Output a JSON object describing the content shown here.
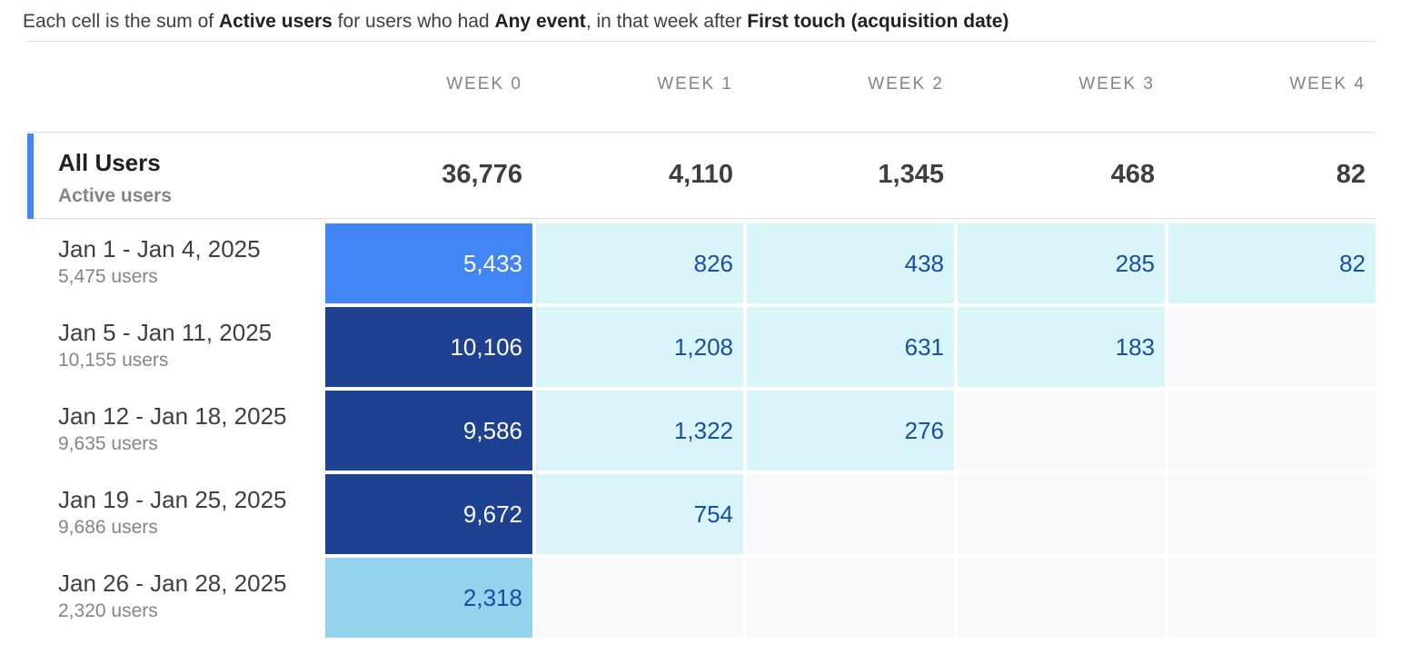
{
  "description": {
    "t1": "Each cell is the sum of ",
    "b1": "Active users",
    "t2": " for users who had ",
    "b2": "Any event",
    "t3": ", in that week after ",
    "b3": "First touch (acquisition date)"
  },
  "columns": [
    "WEEK 0",
    "WEEK 1",
    "WEEK 2",
    "WEEK 3",
    "WEEK 4"
  ],
  "summary": {
    "title": "All Users",
    "subtitle": "Active users",
    "values": [
      "36,776",
      "4,110",
      "1,345",
      "468",
      "82"
    ],
    "accent_color": "#4285f4"
  },
  "cohorts": [
    {
      "range": "Jan 1 - Jan 4, 2025",
      "users": "5,475 users",
      "values": [
        "5,433",
        "826",
        "438",
        "285",
        "82"
      ]
    },
    {
      "range": "Jan 5 - Jan 11, 2025",
      "users": "10,155 users",
      "values": [
        "10,106",
        "1,208",
        "631",
        "183",
        ""
      ]
    },
    {
      "range": "Jan 12 - Jan 18, 2025",
      "users": "9,635 users",
      "values": [
        "9,586",
        "1,322",
        "276",
        "",
        ""
      ]
    },
    {
      "range": "Jan 19 - Jan 25, 2025",
      "users": "9,686 users",
      "values": [
        "9,672",
        "754",
        "",
        "",
        ""
      ]
    },
    {
      "range": "Jan 26 - Jan 28, 2025",
      "users": "2,320 users",
      "values": [
        "2,318",
        "",
        "",
        "",
        ""
      ]
    }
  ],
  "colors": {
    "darkest": "#1e4192",
    "strong": "#4285f4",
    "medium": "#93d4ec",
    "light": "#d9f5fa",
    "empty": "#f8f9fa",
    "dark_text": "#174ea6",
    "light_text": "#ffffff"
  }
}
